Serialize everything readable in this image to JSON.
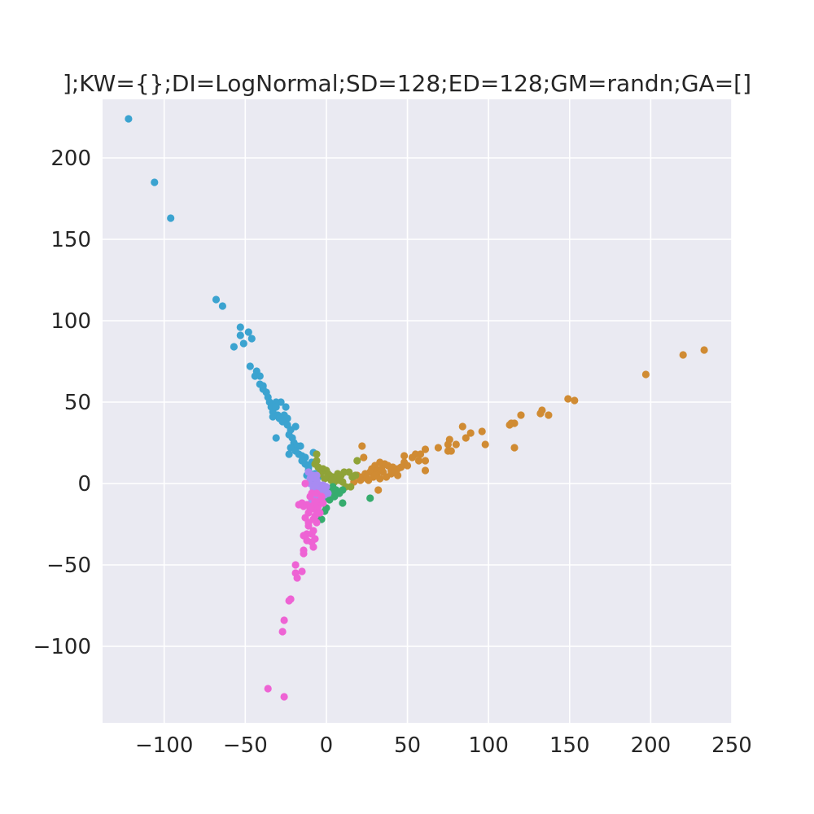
{
  "chart_data": {
    "type": "scatter",
    "title": "];KW={};DI=LogNormal;SD=128;ED=128;GM=randn;GA=[]",
    "xlabel": "",
    "ylabel": "",
    "xlim": [
      -138,
      250
    ],
    "ylim": [
      -147,
      236
    ],
    "x_ticks": [
      -100,
      -50,
      0,
      50,
      100,
      150,
      200,
      250
    ],
    "y_ticks": [
      -100,
      -50,
      0,
      50,
      100,
      150,
      200
    ],
    "x_tick_labels": [
      "−100",
      "−50",
      "0",
      "50",
      "100",
      "150",
      "200",
      "250"
    ],
    "y_tick_labels": [
      "−100",
      "−50",
      "0",
      "50",
      "100",
      "150",
      "200"
    ],
    "grid": true,
    "legend": "none",
    "background": "#eaeaf2",
    "series": [
      {
        "color": "#3ba3d0",
        "points": [
          [
            -122,
            224
          ],
          [
            -106,
            185
          ],
          [
            -96,
            163
          ],
          [
            -68,
            113
          ],
          [
            -64,
            109
          ],
          [
            -53,
            96
          ],
          [
            -48,
            93
          ],
          [
            -53,
            91
          ],
          [
            -46,
            89
          ],
          [
            -51,
            86
          ],
          [
            -57,
            84
          ],
          [
            -47,
            72
          ],
          [
            -43,
            69
          ],
          [
            -44,
            66
          ],
          [
            -41,
            66
          ],
          [
            -41,
            61
          ],
          [
            -39,
            60
          ],
          [
            -39,
            58
          ],
          [
            -37,
            56
          ],
          [
            -36,
            53
          ],
          [
            -35,
            50
          ],
          [
            -31,
            50
          ],
          [
            -28,
            50
          ],
          [
            -34,
            47
          ],
          [
            -31,
            47
          ],
          [
            -25,
            47
          ],
          [
            -33,
            44
          ],
          [
            -30,
            42
          ],
          [
            -26,
            42
          ],
          [
            -24,
            40
          ],
          [
            -33,
            41
          ],
          [
            -29,
            40
          ],
          [
            -27,
            38
          ],
          [
            -24,
            36
          ],
          [
            -22,
            33
          ],
          [
            -19,
            35
          ],
          [
            -31,
            28
          ],
          [
            -23,
            30
          ],
          [
            -21,
            28
          ],
          [
            -20,
            25
          ],
          [
            -18,
            23
          ],
          [
            -16,
            23
          ],
          [
            -22,
            22
          ],
          [
            -19,
            20
          ],
          [
            -17,
            18
          ],
          [
            -15,
            17
          ],
          [
            -13,
            16
          ],
          [
            -23,
            18
          ],
          [
            -15,
            14
          ],
          [
            -13,
            12
          ],
          [
            -11,
            10
          ],
          [
            -8,
            19
          ],
          [
            -9,
            13
          ],
          [
            -11,
            8
          ],
          [
            -12,
            5
          ],
          [
            -9,
            3
          ],
          [
            -7,
            6
          ],
          [
            -5,
            4
          ],
          [
            -6,
            1
          ]
        ]
      },
      {
        "color": "#d08b33",
        "points": [
          [
            233,
            82
          ],
          [
            220,
            79
          ],
          [
            197,
            67
          ],
          [
            149,
            52
          ],
          [
            153,
            51
          ],
          [
            133,
            45
          ],
          [
            132,
            43
          ],
          [
            137,
            42
          ],
          [
            120,
            42
          ],
          [
            114,
            37
          ],
          [
            116,
            37
          ],
          [
            113,
            36
          ],
          [
            116,
            22
          ],
          [
            84,
            35
          ],
          [
            89,
            31
          ],
          [
            96,
            32
          ],
          [
            86,
            28
          ],
          [
            98,
            24
          ],
          [
            76,
            27
          ],
          [
            75,
            24
          ],
          [
            69,
            22
          ],
          [
            61,
            21
          ],
          [
            80,
            24
          ],
          [
            75,
            20
          ],
          [
            77,
            20
          ],
          [
            55,
            18
          ],
          [
            58,
            18
          ],
          [
            48,
            17
          ],
          [
            53,
            16
          ],
          [
            57,
            14
          ],
          [
            61,
            14
          ],
          [
            48,
            13
          ],
          [
            50,
            11
          ],
          [
            46,
            10
          ],
          [
            44,
            9
          ],
          [
            41,
            10
          ],
          [
            38,
            11
          ],
          [
            36,
            12
          ],
          [
            33,
            13
          ],
          [
            30,
            11
          ],
          [
            28,
            9
          ],
          [
            32,
            8
          ],
          [
            27,
            7
          ],
          [
            24,
            6
          ],
          [
            22,
            4
          ],
          [
            21,
            2
          ],
          [
            25,
            3
          ],
          [
            29,
            4
          ],
          [
            31,
            6
          ],
          [
            35,
            7
          ],
          [
            40,
            6
          ],
          [
            44,
            5
          ],
          [
            37,
            4
          ],
          [
            33,
            3
          ],
          [
            22,
            23
          ],
          [
            23,
            16
          ],
          [
            19,
            5
          ],
          [
            61,
            8
          ],
          [
            32,
            -4
          ],
          [
            17,
            1
          ],
          [
            18,
            5
          ],
          [
            26,
            2
          ],
          [
            30,
            5
          ],
          [
            40,
            8
          ],
          [
            42,
            7
          ],
          [
            34,
            9
          ]
        ]
      },
      {
        "color": "#8fa338",
        "points": [
          [
            -6,
            18
          ],
          [
            -6,
            14
          ],
          [
            -5,
            10
          ],
          [
            -2,
            9
          ],
          [
            0,
            8
          ],
          [
            1,
            6
          ],
          [
            2,
            5
          ],
          [
            4,
            4
          ],
          [
            6,
            3
          ],
          [
            7,
            6
          ],
          [
            9,
            5
          ],
          [
            11,
            7
          ],
          [
            14,
            7
          ],
          [
            16,
            4
          ],
          [
            19,
            14
          ],
          [
            18,
            5
          ],
          [
            15,
            -2
          ],
          [
            12,
            -2
          ],
          [
            10,
            1
          ],
          [
            -3,
            7
          ],
          [
            -1,
            3
          ],
          [
            5,
            1
          ],
          [
            8,
            2
          ],
          [
            -7,
            12
          ],
          [
            -4,
            6
          ],
          [
            3,
            2
          ]
        ]
      },
      {
        "color": "#36ac6e",
        "points": [
          [
            27,
            -9
          ],
          [
            10,
            -12
          ],
          [
            5,
            -8
          ],
          [
            3,
            -5
          ],
          [
            1,
            -3
          ],
          [
            -1,
            -7
          ],
          [
            -4,
            -12
          ],
          [
            -6,
            -16
          ],
          [
            -5,
            -20
          ],
          [
            -3,
            -22
          ],
          [
            0,
            -15
          ],
          [
            2,
            -10
          ],
          [
            6,
            -4
          ],
          [
            8,
            -6
          ],
          [
            10,
            -4
          ],
          [
            4,
            -2
          ],
          [
            -2,
            -2
          ],
          [
            0,
            -9
          ],
          [
            -1,
            -17
          ],
          [
            -2,
            -4
          ]
        ]
      },
      {
        "color": "#a88bf2",
        "points": [
          [
            -11,
            7
          ],
          [
            -8,
            5
          ],
          [
            -6,
            2
          ],
          [
            -4,
            -1
          ],
          [
            -2,
            -4
          ],
          [
            0,
            -2
          ],
          [
            -6,
            -8
          ],
          [
            -8,
            -3
          ],
          [
            -10,
            0
          ],
          [
            -4,
            -6
          ],
          [
            -1,
            -7
          ],
          [
            1,
            -6
          ],
          [
            -9,
            -11
          ],
          [
            -3,
            -10
          ],
          [
            -7,
            -1
          ],
          [
            -5,
            -4
          ],
          [
            -2,
            -1
          ],
          [
            -10,
            3
          ],
          [
            -6,
            5
          ]
        ]
      },
      {
        "color": "#ee63d4",
        "points": [
          [
            -26,
            -131
          ],
          [
            -36,
            -126
          ],
          [
            -27,
            -91
          ],
          [
            -26,
            -84
          ],
          [
            -22,
            -71
          ],
          [
            -23,
            -72
          ],
          [
            -19,
            -50
          ],
          [
            -19,
            -55
          ],
          [
            -18,
            -58
          ],
          [
            -15,
            -54
          ],
          [
            -14,
            -41
          ],
          [
            -14,
            -43
          ],
          [
            -12,
            -31
          ],
          [
            -9,
            -31
          ],
          [
            -9,
            -36
          ],
          [
            -8,
            -39
          ],
          [
            -7,
            -34
          ],
          [
            -8,
            -29
          ],
          [
            -14,
            -32
          ],
          [
            -11,
            -26
          ],
          [
            -13,
            -21
          ],
          [
            -11,
            -18
          ],
          [
            -10,
            -16
          ],
          [
            -9,
            -14
          ],
          [
            -7,
            -20
          ],
          [
            -6,
            -17
          ],
          [
            -5,
            -14
          ],
          [
            -4,
            -11
          ],
          [
            -7,
            -11
          ],
          [
            -10,
            -8
          ],
          [
            -12,
            -13
          ],
          [
            -14,
            -14
          ],
          [
            -17,
            -13
          ],
          [
            -15,
            -12
          ],
          [
            -13,
            0
          ],
          [
            -9,
            -6
          ],
          [
            -6,
            -24
          ],
          [
            -11,
            -24
          ],
          [
            -8,
            -22
          ],
          [
            -4,
            -18
          ],
          [
            -2,
            -12
          ],
          [
            -6,
            -6
          ],
          [
            -3,
            -8
          ],
          [
            -12,
            -35
          ]
        ]
      }
    ]
  }
}
